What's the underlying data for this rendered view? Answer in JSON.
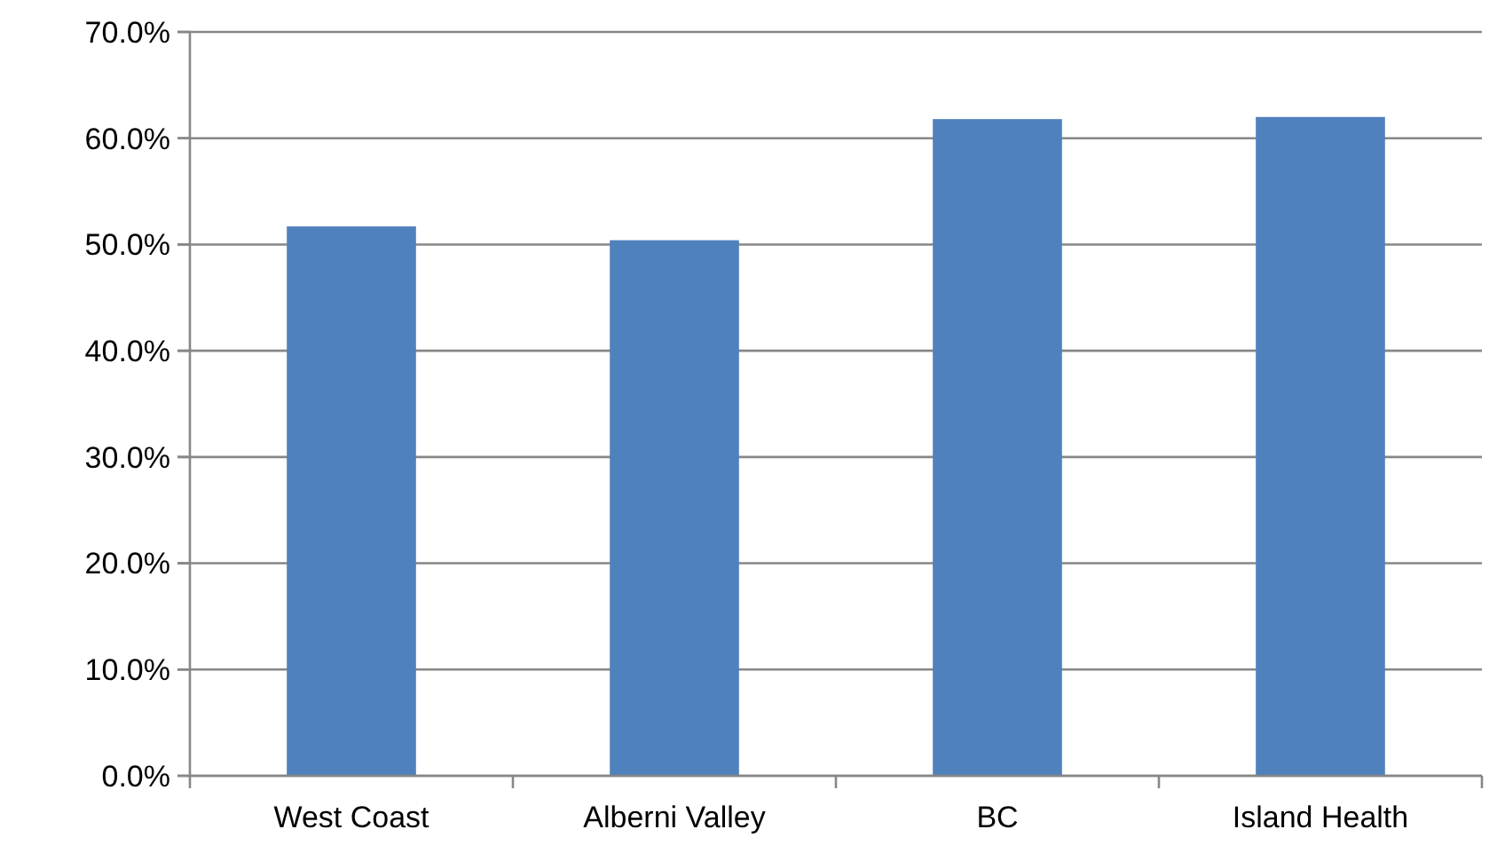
{
  "chart_data": {
    "type": "bar",
    "categories": [
      "West Coast",
      "Alberni Valley",
      "BC",
      "Island Health"
    ],
    "values": [
      51.7,
      50.4,
      61.8,
      62.0
    ],
    "color": "#4f81bd",
    "ylim": [
      0,
      70
    ],
    "yticks": [
      {
        "value": 0,
        "label": "0.0%"
      },
      {
        "value": 10,
        "label": "10.0%"
      },
      {
        "value": 20,
        "label": "20.0%"
      },
      {
        "value": 30,
        "label": "30.0%"
      },
      {
        "value": 40,
        "label": "40.0%"
      },
      {
        "value": 50,
        "label": "50.0%"
      },
      {
        "value": 60,
        "label": "60.0%"
      },
      {
        "value": 70,
        "label": "70.0%"
      }
    ],
    "grid": "y"
  }
}
